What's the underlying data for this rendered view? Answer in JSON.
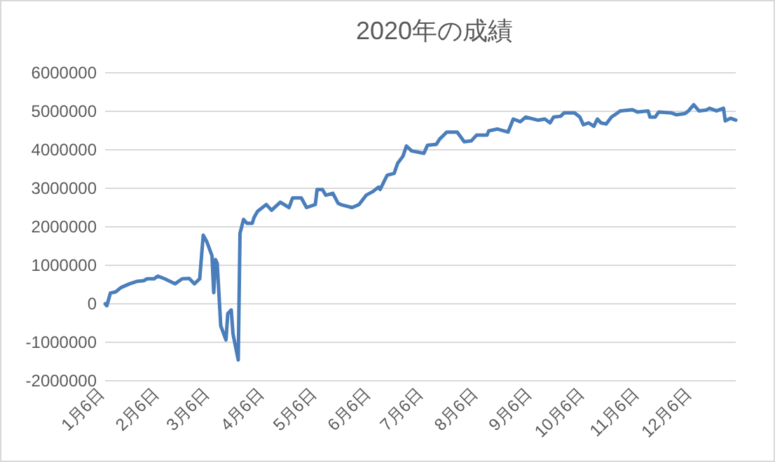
{
  "chart_data": {
    "type": "line",
    "title": "2020年の成績",
    "color": "#4a7ebb",
    "grid": "y",
    "x": [
      "--01-06",
      "--01-07",
      "--01-09",
      "--01-12",
      "--01-15",
      "--01-20",
      "--01-24",
      "--01-28",
      "--01-30",
      "--02-03",
      "--02-05",
      "--02-09",
      "--02-15",
      "--02-19",
      "--02-23",
      "--02-26",
      "--02-29",
      "--03-02",
      "--03-04",
      "--03-07",
      "--03-08",
      "--03-09",
      "--03-10",
      "--03-12",
      "--03-15",
      "--03-16",
      "--03-18",
      "--03-19",
      "--03-22",
      "--03-23",
      "--03-25",
      "--03-27",
      "--03-30",
      "--03-31",
      "--04-02",
      "--04-07",
      "--04-10",
      "--04-15",
      "--04-20",
      "--04-22",
      "--04-27",
      "--04-30",
      "--05-05",
      "--05-06",
      "--05-09",
      "--05-11",
      "--05-15",
      "--05-18",
      "--05-20",
      "--05-26",
      "--05-30",
      "--06-03",
      "--06-07",
      "--06-10",
      "--06-11",
      "--06-15",
      "--06-19",
      "--06-21",
      "--06-24",
      "--06-26",
      "--06-29",
      "--07-06",
      "--07-08",
      "--07-13",
      "--07-15",
      "--07-19",
      "--07-25",
      "--07-29",
      "--08-02",
      "--08-05",
      "--08-11",
      "--08-12",
      "--08-17",
      "--08-23",
      "--08-26",
      "--08-30",
      "--09-02",
      "--09-09",
      "--09-13",
      "--09-16",
      "--09-18",
      "--09-22",
      "--09-24",
      "--09-30",
      "--10-03",
      "--10-05",
      "--10-08",
      "--10-11",
      "--10-13",
      "--10-15",
      "--10-18",
      "--10-21",
      "--10-23",
      "--10-26",
      "--11-02",
      "--11-05",
      "--11-11",
      "--11-12",
      "--11-15",
      "--11-17",
      "--11-24",
      "--11-27",
      "--12-02",
      "--12-04",
      "--12-07",
      "--12-10",
      "--12-14",
      "--12-16",
      "--12-20",
      "--12-24",
      "--12-25",
      "--12-28",
      "--12-31"
    ],
    "values": [
      0,
      -50000,
      280000,
      310000,
      420000,
      520000,
      580000,
      600000,
      650000,
      650000,
      720000,
      650000,
      520000,
      650000,
      660000,
      520000,
      650000,
      1780000,
      1620000,
      1250000,
      290000,
      1150000,
      1050000,
      -570000,
      -940000,
      -260000,
      -160000,
      -780000,
      -1460000,
      1830000,
      2190000,
      2090000,
      2090000,
      2240000,
      2400000,
      2580000,
      2430000,
      2640000,
      2500000,
      2750000,
      2750000,
      2500000,
      2580000,
      2970000,
      2970000,
      2820000,
      2870000,
      2610000,
      2570000,
      2500000,
      2580000,
      2820000,
      2920000,
      3030000,
      2970000,
      3340000,
      3390000,
      3650000,
      3830000,
      4100000,
      3970000,
      3910000,
      4120000,
      4140000,
      4280000,
      4460000,
      4460000,
      4210000,
      4230000,
      4380000,
      4380000,
      4490000,
      4540000,
      4460000,
      4800000,
      4730000,
      4850000,
      4770000,
      4800000,
      4700000,
      4850000,
      4870000,
      4960000,
      4960000,
      4850000,
      4650000,
      4700000,
      4610000,
      4800000,
      4700000,
      4670000,
      4850000,
      4910000,
      5010000,
      5040000,
      4980000,
      5010000,
      4850000,
      4850000,
      4980000,
      4960000,
      4910000,
      4940000,
      5010000,
      5170000,
      5010000,
      5030000,
      5080000,
      5010000,
      5080000,
      4750000,
      4820000,
      4770000
    ],
    "xlim": [
      "--01-06",
      "--12-31"
    ],
    "xticks": [
      {
        "value": "--01-06",
        "label": "1月6日"
      },
      {
        "value": "--02-06",
        "label": "2月6日"
      },
      {
        "value": "--03-06",
        "label": "3月6日"
      },
      {
        "value": "--04-06",
        "label": "4月6日"
      },
      {
        "value": "--05-06",
        "label": "5月6日"
      },
      {
        "value": "--06-06",
        "label": "6月6日"
      },
      {
        "value": "--07-06",
        "label": "7月6日"
      },
      {
        "value": "--08-06",
        "label": "8月6日"
      },
      {
        "value": "--09-06",
        "label": "9月6日"
      },
      {
        "value": "--10-06",
        "label": "10月6日"
      },
      {
        "value": "--11-06",
        "label": "11月6日"
      },
      {
        "value": "--12-06",
        "label": "12月6日"
      }
    ],
    "ylim": [
      -2000000,
      6000000
    ],
    "yticks": [
      -2000000,
      -1000000,
      0,
      1000000,
      2000000,
      3000000,
      4000000,
      5000000,
      6000000
    ]
  }
}
